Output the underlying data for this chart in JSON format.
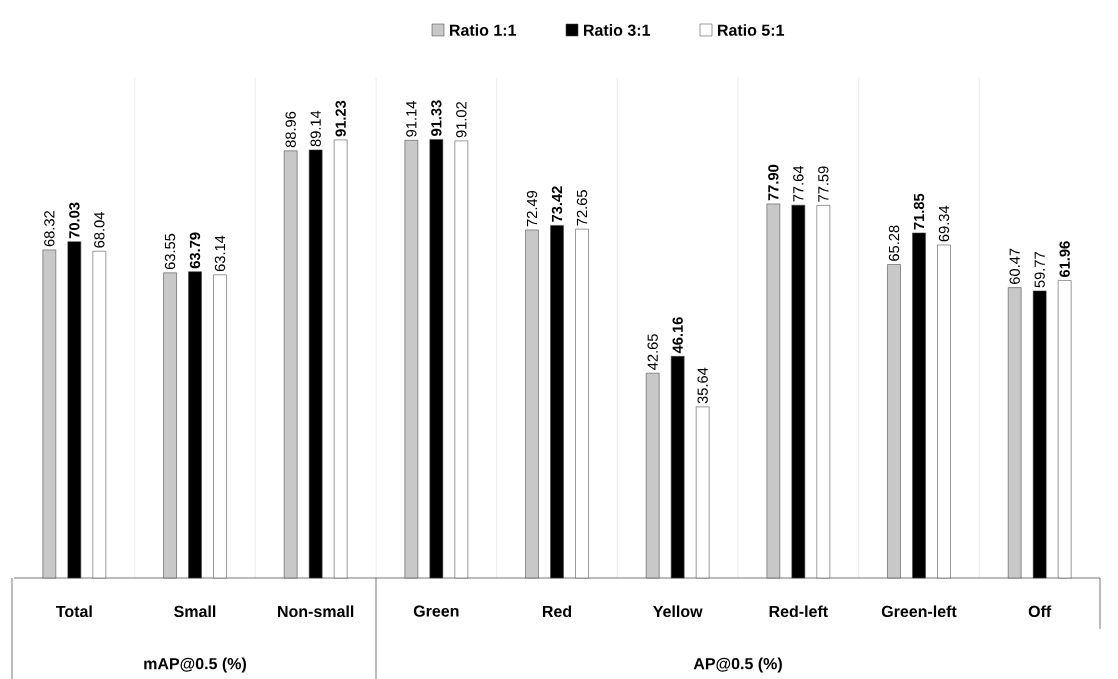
{
  "chart_data": {
    "type": "bar",
    "categories": [
      "Total",
      "Small",
      "Non-small",
      "Green",
      "Red",
      "Yellow",
      "Red-left",
      "Green-left",
      "Off"
    ],
    "series": [
      {
        "name": "Ratio 1:1",
        "color": "#c8c8c8",
        "values": [
          68.32,
          63.55,
          88.96,
          91.14,
          72.49,
          42.65,
          77.9,
          65.28,
          60.47
        ],
        "value_labels": [
          "68.32",
          "63.55",
          "88.96",
          "91.14",
          "72.49",
          "42.65",
          "**77.90**",
          "65.28",
          "60.47"
        ]
      },
      {
        "name": "Ratio 3:1",
        "color": "#000000",
        "values": [
          70.03,
          63.79,
          89.14,
          91.33,
          73.42,
          46.16,
          77.64,
          71.85,
          59.77
        ],
        "value_labels": [
          "**70.03**",
          "**63.79**",
          "89.14",
          "**91.33**",
          "**73.42**",
          "**46.16**",
          "77.64",
          "**71.85**",
          "59.77"
        ]
      },
      {
        "name": "Ratio 5:1",
        "color": "#ffffff",
        "values": [
          68.04,
          63.14,
          91.23,
          91.02,
          72.65,
          35.64,
          77.59,
          69.34,
          61.96
        ],
        "value_labels": [
          "68.04",
          "63.14",
          "**91.23**",
          "91.02",
          "72.65",
          "35.64",
          "77.59",
          "69.34",
          "**61.96**"
        ]
      }
    ],
    "annotations": [
      "mAP@0.5 (%)",
      "AP@0.5 (%)"
    ],
    "grid": "x",
    "legend": "top right"
  }
}
